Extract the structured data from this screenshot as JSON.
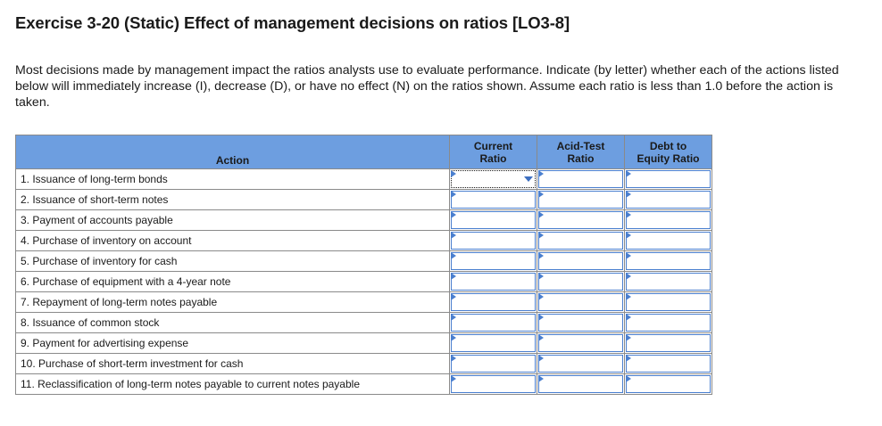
{
  "title": "Exercise 3-20 (Static) Effect of management decisions on ratios [LO3-8]",
  "intro": "Most decisions made by management impact the ratios analysts use to evaluate performance. Indicate (by letter) whether each of the actions listed below will immediately increase (I), decrease (D), or have no effect (N) on the ratios shown. Assume each ratio is less than 1.0 before the action is taken.",
  "table": {
    "headers": {
      "action": "Action",
      "current_line1": "Current",
      "current_line2": "Ratio",
      "acid_line1": "Acid-Test",
      "acid_line2": "Ratio",
      "debt_line1": "Debt to",
      "debt_line2": "Equity Ratio"
    },
    "rows": [
      {
        "action": "1. Issuance of long-term bonds",
        "current": "",
        "acid": "",
        "debt": ""
      },
      {
        "action": "2. Issuance of short-term notes",
        "current": "",
        "acid": "",
        "debt": ""
      },
      {
        "action": "3. Payment of accounts payable",
        "current": "",
        "acid": "",
        "debt": ""
      },
      {
        "action": "4. Purchase of inventory on account",
        "current": "",
        "acid": "",
        "debt": ""
      },
      {
        "action": "5. Purchase of inventory for cash",
        "current": "",
        "acid": "",
        "debt": ""
      },
      {
        "action": "6. Purchase of equipment with a 4-year note",
        "current": "",
        "acid": "",
        "debt": ""
      },
      {
        "action": "7. Repayment of long-term notes payable",
        "current": "",
        "acid": "",
        "debt": ""
      },
      {
        "action": "8. Issuance of common stock",
        "current": "",
        "acid": "",
        "debt": ""
      },
      {
        "action": "9. Payment for advertising expense",
        "current": "",
        "acid": "",
        "debt": ""
      },
      {
        "action": "10. Purchase of short-term investment for cash",
        "current": "",
        "acid": "",
        "debt": ""
      },
      {
        "action": "11. Reclassification of long-term notes payable to current notes payable",
        "current": "",
        "acid": "",
        "debt": ""
      }
    ]
  },
  "colors": {
    "header_bg": "#6d9ee0",
    "input_border": "#4a7fcf"
  }
}
